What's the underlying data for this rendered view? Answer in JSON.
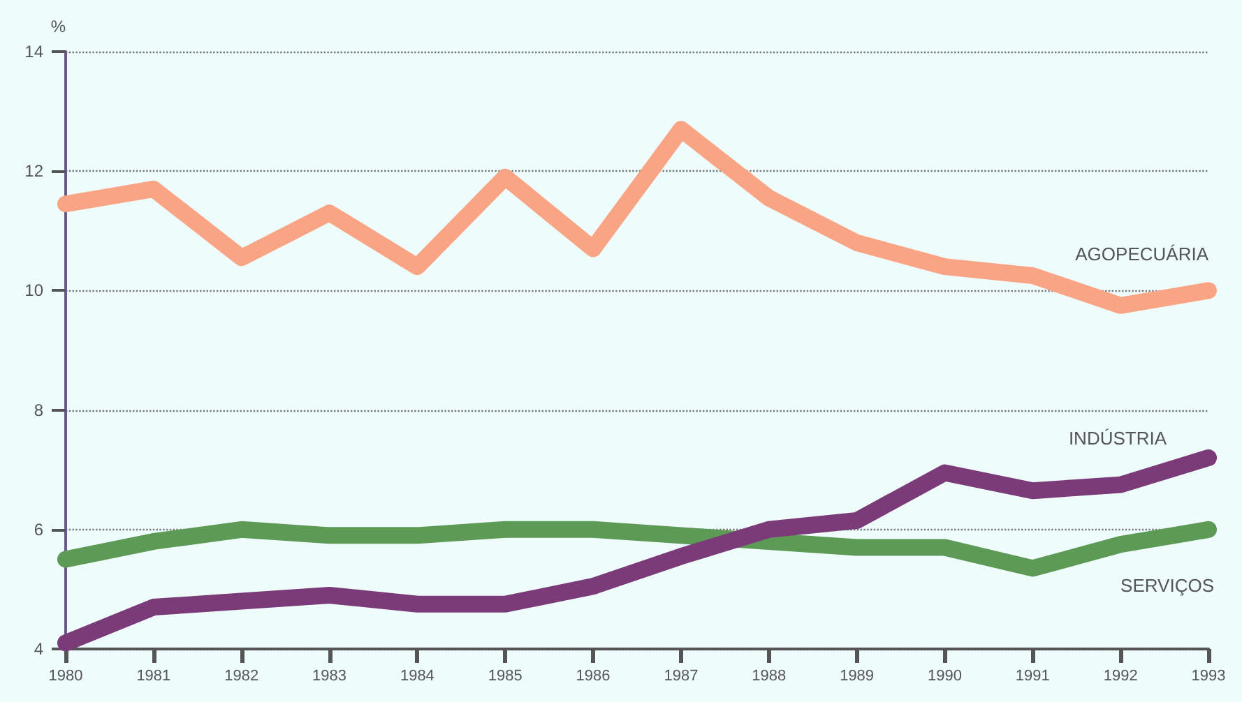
{
  "chart_data": {
    "type": "line",
    "ylabel": "%",
    "x": [
      1980,
      1981,
      1982,
      1983,
      1984,
      1985,
      1986,
      1987,
      1988,
      1989,
      1990,
      1991,
      1992,
      1993
    ],
    "series": [
      {
        "name": "AGOPECUÁRIA",
        "color": "#f9a585",
        "values": [
          11.45,
          11.7,
          10.55,
          11.3,
          10.4,
          11.9,
          10.7,
          12.7,
          11.55,
          10.8,
          10.4,
          10.25,
          9.75,
          10.0
        ]
      },
      {
        "name": "INDÚSTRIA",
        "color": "#7b3b78",
        "values": [
          4.1,
          4.7,
          4.8,
          4.9,
          4.75,
          4.75,
          5.05,
          5.55,
          6.0,
          6.15,
          6.95,
          6.65,
          6.75,
          7.2
        ]
      },
      {
        "name": "SERVIÇOS",
        "color": "#5c9a56",
        "values": [
          5.5,
          5.8,
          6.0,
          5.9,
          5.9,
          6.0,
          6.0,
          5.9,
          5.8,
          5.7,
          5.7,
          5.35,
          5.75,
          6.0
        ]
      }
    ],
    "xlim": [
      1980,
      1993
    ],
    "xticks": [
      1980,
      1981,
      1982,
      1983,
      1984,
      1985,
      1986,
      1987,
      1988,
      1989,
      1990,
      1991,
      1992,
      1993
    ],
    "ylim": [
      4,
      14
    ],
    "yticks": [
      4,
      6,
      8,
      10,
      12,
      14
    ],
    "grid": "y",
    "legend": false,
    "line_style": "solid"
  }
}
